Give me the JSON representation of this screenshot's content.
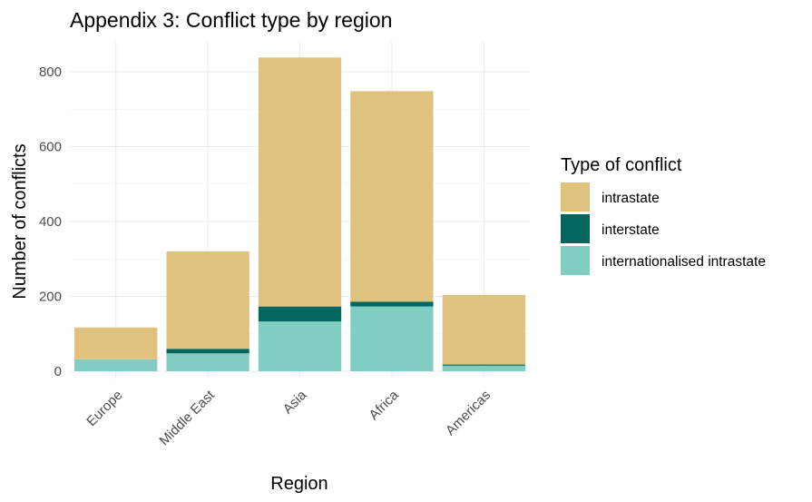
{
  "chart_data": {
    "type": "bar",
    "stacked": true,
    "title": "Appendix 3: Conflict type by region",
    "xlabel": "Region",
    "ylabel": "Number of conflicts",
    "categories": [
      "Europe",
      "Middle East",
      "Asia",
      "Africa",
      "Americas"
    ],
    "series": [
      {
        "name": "internationalised intrastate",
        "color": "#80cdc1",
        "values": [
          32,
          48,
          133,
          173,
          15
        ]
      },
      {
        "name": "interstate",
        "color": "#01665e",
        "values": [
          0,
          12,
          40,
          13,
          3
        ]
      },
      {
        "name": "intrastate",
        "color": "#dfc27d",
        "values": [
          85,
          260,
          665,
          562,
          186
        ]
      }
    ],
    "yticks": [
      0,
      200,
      400,
      600,
      800
    ],
    "ylim": [
      0,
      838
    ],
    "grid": true,
    "legend": {
      "title": "Type of conflict",
      "position": "right",
      "order": [
        "intrastate",
        "interstate",
        "internationalised intrastate"
      ]
    }
  }
}
